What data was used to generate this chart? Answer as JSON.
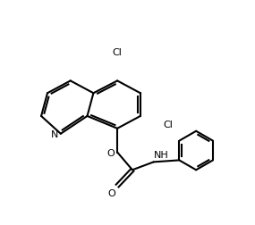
{
  "bg_color": "#ffffff",
  "line_color": "#000000",
  "line_width": 1.5,
  "font_size": 8,
  "atoms": {
    "N_label": "N",
    "O_label": "O",
    "Cl1_label": "Cl",
    "Cl2_label": "Cl",
    "NH_label": "NH",
    "O2_label": "O"
  }
}
